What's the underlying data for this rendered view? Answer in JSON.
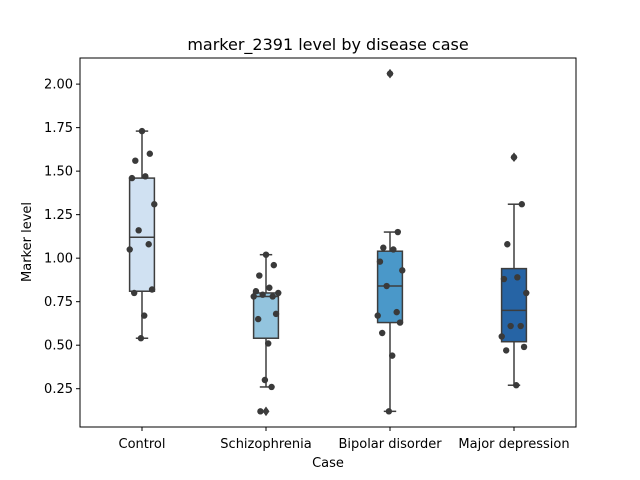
{
  "chart_data": {
    "type": "box",
    "title": "marker_2391 level by disease case",
    "xlabel": "Case",
    "ylabel": "Marker level",
    "categories": [
      "Control",
      "Schizophrenia",
      "Bipolar disorder",
      "Major depression"
    ],
    "ylim": [
      0.03,
      2.15
    ],
    "yticks": [
      0.25,
      0.5,
      0.75,
      1.0,
      1.25,
      1.5,
      1.75,
      2.0
    ],
    "ytick_labels": [
      "0.25",
      "0.50",
      "0.75",
      "1.00",
      "1.25",
      "1.50",
      "1.75",
      "2.00"
    ],
    "grid": false,
    "boxes": [
      {
        "category": "Control",
        "whisker_low": 0.54,
        "q1": 0.81,
        "median": 1.12,
        "q3": 1.46,
        "whisker_high": 1.73,
        "fliers": [],
        "color": "#d0e1f2"
      },
      {
        "category": "Schizophrenia",
        "whisker_low": 0.26,
        "q1": 0.54,
        "median": 0.78,
        "q3": 0.8,
        "whisker_high": 1.02,
        "fliers": [
          0.12
        ],
        "color": "#93c4de"
      },
      {
        "category": "Bipolar disorder",
        "whisker_low": 0.12,
        "q1": 0.63,
        "median": 0.84,
        "q3": 1.04,
        "whisker_high": 1.15,
        "fliers": [
          2.06
        ],
        "color": "#4a98c9"
      },
      {
        "category": "Major depression",
        "whisker_low": 0.27,
        "q1": 0.52,
        "median": 0.7,
        "q3": 0.94,
        "whisker_high": 1.31,
        "fliers": [
          1.58
        ],
        "color": "#2664a5"
      }
    ],
    "points": [
      {
        "category": "Control",
        "values": [
          1.73,
          1.6,
          1.56,
          1.47,
          1.46,
          1.31,
          1.16,
          1.08,
          1.05,
          0.82,
          0.8,
          0.67,
          0.54
        ]
      },
      {
        "category": "Schizophrenia",
        "values": [
          1.02,
          0.96,
          0.9,
          0.83,
          0.81,
          0.8,
          0.79,
          0.78,
          0.78,
          0.68,
          0.65,
          0.51,
          0.3,
          0.26,
          0.12
        ]
      },
      {
        "category": "Bipolar disorder",
        "values": [
          2.06,
          1.15,
          1.06,
          1.05,
          0.98,
          0.93,
          0.84,
          0.69,
          0.67,
          0.63,
          0.57,
          0.44,
          0.12
        ]
      },
      {
        "category": "Major depression",
        "values": [
          1.58,
          1.31,
          1.08,
          0.89,
          0.88,
          0.8,
          0.61,
          0.61,
          0.55,
          0.49,
          0.47,
          0.27
        ]
      }
    ]
  }
}
